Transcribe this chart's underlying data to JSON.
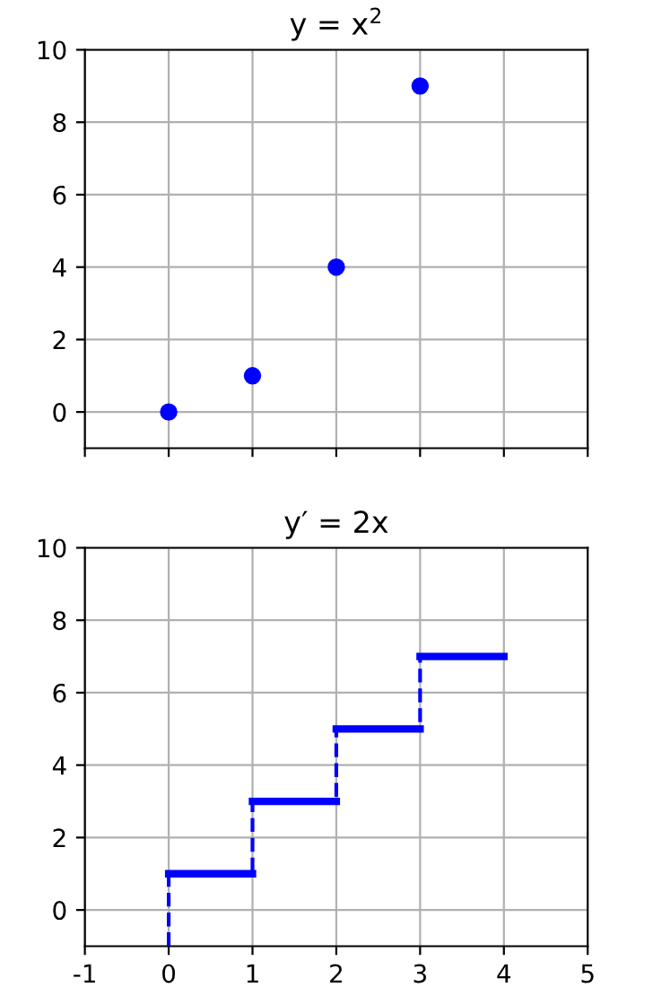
{
  "chart_data": [
    {
      "type": "scatter",
      "title": "y = x$^{2}$",
      "x": [
        0,
        1,
        2,
        3
      ],
      "series": [
        {
          "color": "#0000ff",
          "values": [
            0,
            1,
            4,
            9
          ]
        }
      ],
      "marker": "circle",
      "xlim": [
        -1,
        5
      ],
      "xticks": [
        -1,
        0,
        1,
        2,
        3,
        4,
        5
      ],
      "ylim": [
        -1,
        10
      ],
      "yticks": [
        0,
        2,
        4,
        6,
        8,
        10
      ],
      "grid": true,
      "tick_labels": "y"
    },
    {
      "type": "step",
      "title": "y′ = 2x",
      "x": [
        0,
        0,
        1,
        2,
        3,
        4
      ],
      "series": [
        {
          "color": "#0000ff",
          "values": [
            -1,
            1,
            3,
            5,
            7,
            7
          ],
          "line_style": "dashed"
        },
        {
          "type": "line",
          "color": "#0000ff",
          "x": [
            0,
            1,
            null,
            1,
            2,
            null,
            2,
            3,
            null,
            3,
            4
          ],
          "values": [
            1,
            1,
            null,
            3,
            3,
            null,
            5,
            5,
            null,
            7,
            7
          ],
          "line_style": "solid"
        }
      ],
      "xlim": [
        -1,
        5
      ],
      "xticks": [
        -1,
        0,
        1,
        2,
        3,
        4,
        5
      ],
      "ylim": [
        -1,
        10
      ],
      "yticks": [
        0,
        2,
        4,
        6,
        8,
        10
      ],
      "grid": true
    }
  ]
}
